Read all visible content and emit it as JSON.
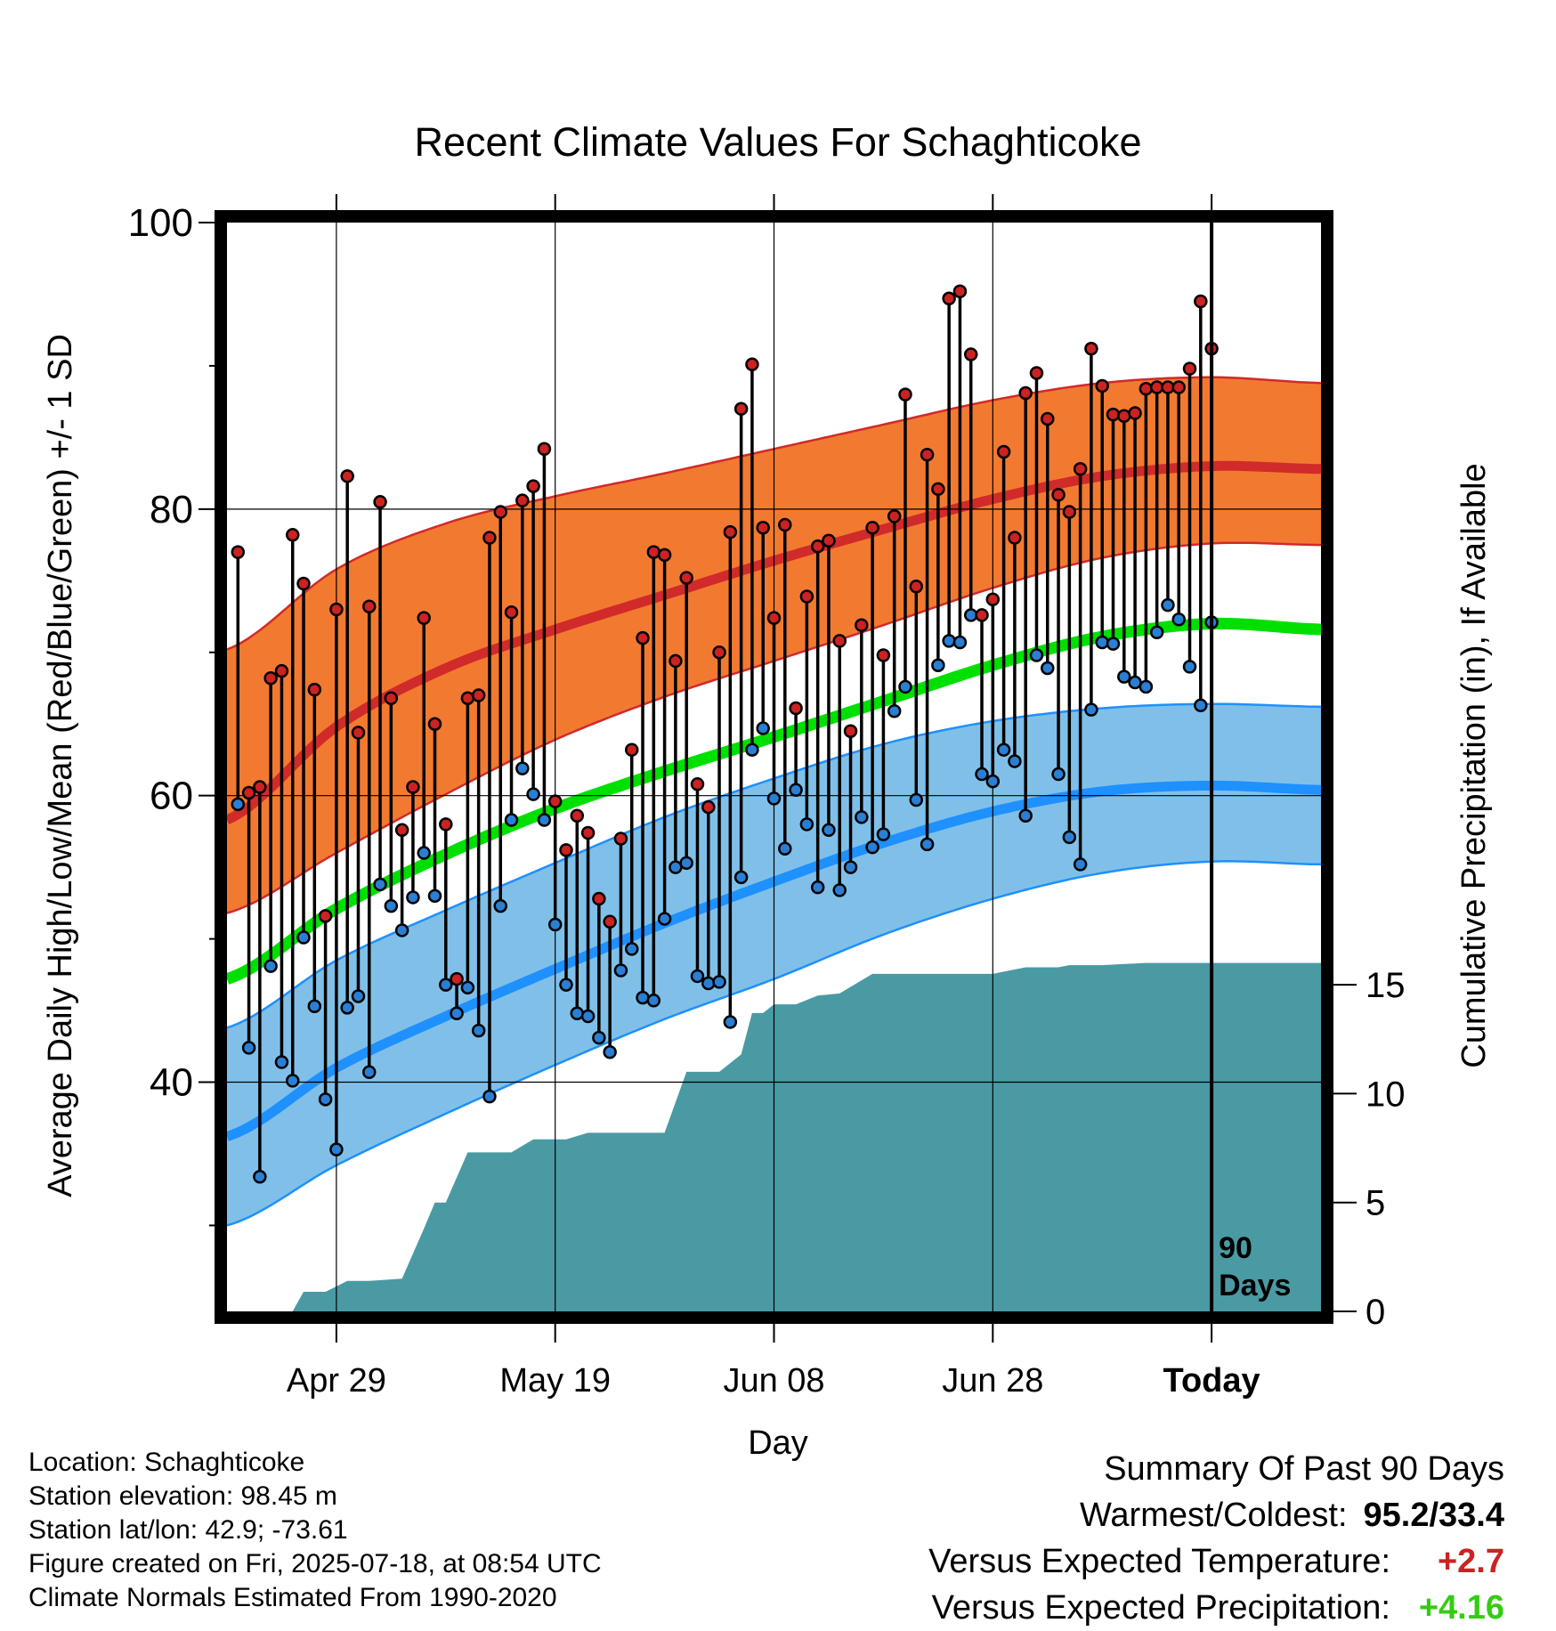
{
  "title": "Recent Climate Values For Schaghticoke",
  "y_axis_label": "Average Daily High/Low/Mean (Red/Blue/Green) +/- 1 SD",
  "y2_axis_label": "Cumulative Precipitation (in), If Available",
  "x_axis_label": "Day",
  "today_marker_label_1": "90",
  "today_marker_label_2": "Days",
  "info": {
    "location": "Location: Schaghticoke",
    "elevation": "Station elevation: 98.45 m",
    "latlon": "Station lat/lon: 42.9; -73.61",
    "created": "Figure created on Fri, 2025-07-18, at 08:54 UTC",
    "normals": "Climate Normals Estimated From 1990-2020"
  },
  "summary": {
    "heading": "Summary Of Past 90 Days",
    "warmest_coldest_label": "Warmest/Coldest:",
    "warmest_coldest_value": "95.2/33.4",
    "temp_label": "Versus Expected Temperature:",
    "temp_value": "+2.7",
    "precip_label": "Versus Expected Precipitation:",
    "precip_value": "+4.16"
  },
  "colors": {
    "high_band": "#f27a30",
    "high_line": "#d12a2a",
    "mean_line": "#00e000",
    "low_band": "#80c0e8",
    "low_line": "#1e90ff",
    "precip": "#4a9aa4",
    "high_dot": "#cc2222",
    "low_dot": "#2a7fd4"
  },
  "chart_data": {
    "type": "line",
    "x_days": [
      -90,
      10
    ],
    "x_ticks": [
      {
        "day": -80,
        "label": "Apr 29"
      },
      {
        "day": -60,
        "label": "May 19"
      },
      {
        "day": -40,
        "label": "Jun 08"
      },
      {
        "day": -20,
        "label": "Jun 28"
      },
      {
        "day": 0,
        "label": "Today"
      }
    ],
    "ylim": [
      24,
      100
    ],
    "y_ticks": [
      40,
      60,
      80,
      100
    ],
    "y_minor_ticks": [
      30,
      50,
      70,
      90
    ],
    "y2lim": [
      0,
      50
    ],
    "y2_ticks": [
      0,
      5,
      10,
      15
    ],
    "normals": {
      "days": [
        -90,
        -80,
        -70,
        -60,
        -50,
        -40,
        -30,
        -20,
        -10,
        0,
        10
      ],
      "high_mean": [
        58.3,
        64.8,
        68.9,
        71.6,
        74.0,
        76.4,
        78.6,
        80.7,
        82.3,
        83.0,
        82.8
      ],
      "high_upper": [
        70.2,
        75.8,
        79.0,
        80.9,
        82.5,
        84.2,
        85.9,
        87.6,
        88.8,
        89.2,
        88.8
      ],
      "high_lower": [
        51.8,
        56.0,
        60.1,
        63.9,
        66.9,
        69.4,
        71.9,
        74.5,
        76.6,
        77.6,
        77.5
      ],
      "mean": [
        47.2,
        52.1,
        55.9,
        59.1,
        61.7,
        64.1,
        66.6,
        69.1,
        71.1,
        72.0,
        71.6
      ],
      "low_mean": [
        36.2,
        41.0,
        44.6,
        47.9,
        51.1,
        54.0,
        56.7,
        58.9,
        60.3,
        60.7,
        60.4
      ],
      "low_upper": [
        43.8,
        48.5,
        52.0,
        55.3,
        58.5,
        61.2,
        63.6,
        65.2,
        66.1,
        66.4,
        66.2
      ],
      "low_lower": [
        30.0,
        34.2,
        37.8,
        41.2,
        44.4,
        47.2,
        50.3,
        52.8,
        54.6,
        55.4,
        55.2
      ]
    },
    "daily": {
      "start_day": -89,
      "high": [
        77.0,
        60.2,
        60.6,
        68.2,
        68.7,
        78.2,
        74.8,
        67.4,
        51.6,
        73.0,
        82.3,
        64.4,
        73.2,
        80.5,
        66.8,
        57.6,
        60.6,
        72.4,
        65.0,
        58.0,
        47.2,
        66.8,
        67.0,
        78.0,
        79.8,
        72.8,
        80.6,
        81.6,
        84.2,
        59.6,
        56.2,
        58.6,
        57.4,
        52.8,
        51.2,
        57.0,
        63.2,
        71.0,
        77.0,
        76.8,
        69.4,
        75.2,
        60.8,
        59.2,
        70.0,
        78.4,
        87.0,
        90.1,
        78.7,
        72.4,
        78.9,
        66.1,
        73.9,
        77.4,
        77.8,
        70.8,
        64.5,
        71.9,
        78.7,
        69.8,
        79.5,
        88.0,
        74.6,
        83.8,
        81.4,
        94.7,
        95.2,
        90.8,
        72.6,
        73.7,
        84.0,
        78.0,
        88.1,
        89.5,
        86.3,
        81.0,
        79.8,
        82.8,
        91.2,
        88.6,
        86.6,
        86.5,
        86.7,
        88.4,
        88.5,
        88.5,
        88.5,
        89.8,
        94.5,
        91.2
      ],
      "low": [
        59.4,
        42.4,
        33.4,
        48.1,
        41.4,
        40.1,
        50.1,
        45.3,
        38.8,
        35.3,
        45.2,
        46.0,
        40.7,
        53.8,
        52.3,
        50.6,
        52.9,
        56.0,
        53.0,
        46.8,
        44.8,
        46.6,
        43.6,
        39.0,
        52.3,
        58.3,
        61.9,
        60.1,
        58.3,
        51.0,
        46.8,
        44.8,
        44.6,
        43.1,
        42.1,
        47.8,
        49.3,
        45.9,
        45.7,
        51.4,
        55.0,
        55.3,
        47.4,
        46.9,
        47.0,
        44.2,
        54.3,
        63.2,
        64.7,
        59.8,
        56.3,
        60.4,
        58.0,
        53.6,
        57.6,
        53.4,
        55.0,
        58.5,
        56.4,
        57.3,
        65.9,
        67.6,
        59.7,
        56.6,
        69.1,
        70.8,
        70.7,
        72.6,
        61.5,
        61.0,
        63.2,
        62.4,
        58.6,
        69.8,
        68.9,
        61.5,
        57.1,
        55.2,
        66.0,
        70.7,
        70.6,
        68.3,
        67.9,
        67.6,
        71.4,
        73.3,
        72.3,
        69.0,
        66.3,
        72.1
      ]
    },
    "precip_cumulative": {
      "days": [
        -90,
        -84,
        -83,
        -81,
        -79,
        -78,
        -77,
        -74,
        -72,
        -71,
        -70,
        -68,
        -66,
        -64,
        -62,
        -61,
        -59,
        -57,
        -55,
        -54,
        -52,
        -50,
        -48,
        -46,
        -45,
        -43,
        -42,
        -41,
        -40,
        -38,
        -36,
        -34,
        -31,
        -30,
        -28,
        -26,
        -22,
        -20,
        -17,
        -14,
        -13,
        -10,
        -6,
        -2,
        10
      ],
      "values": [
        0,
        0,
        0.9,
        0.9,
        1.4,
        1.4,
        1.4,
        1.5,
        3.8,
        5.0,
        5.0,
        7.3,
        7.3,
        7.3,
        7.9,
        7.9,
        7.9,
        8.2,
        8.2,
        8.2,
        8.2,
        8.2,
        11.0,
        11.0,
        11.0,
        11.8,
        13.7,
        13.7,
        14.1,
        14.1,
        14.5,
        14.6,
        15.5,
        15.5,
        15.5,
        15.5,
        15.5,
        15.5,
        15.8,
        15.8,
        15.9,
        15.9,
        16.0,
        16.0,
        16.0
      ]
    }
  }
}
